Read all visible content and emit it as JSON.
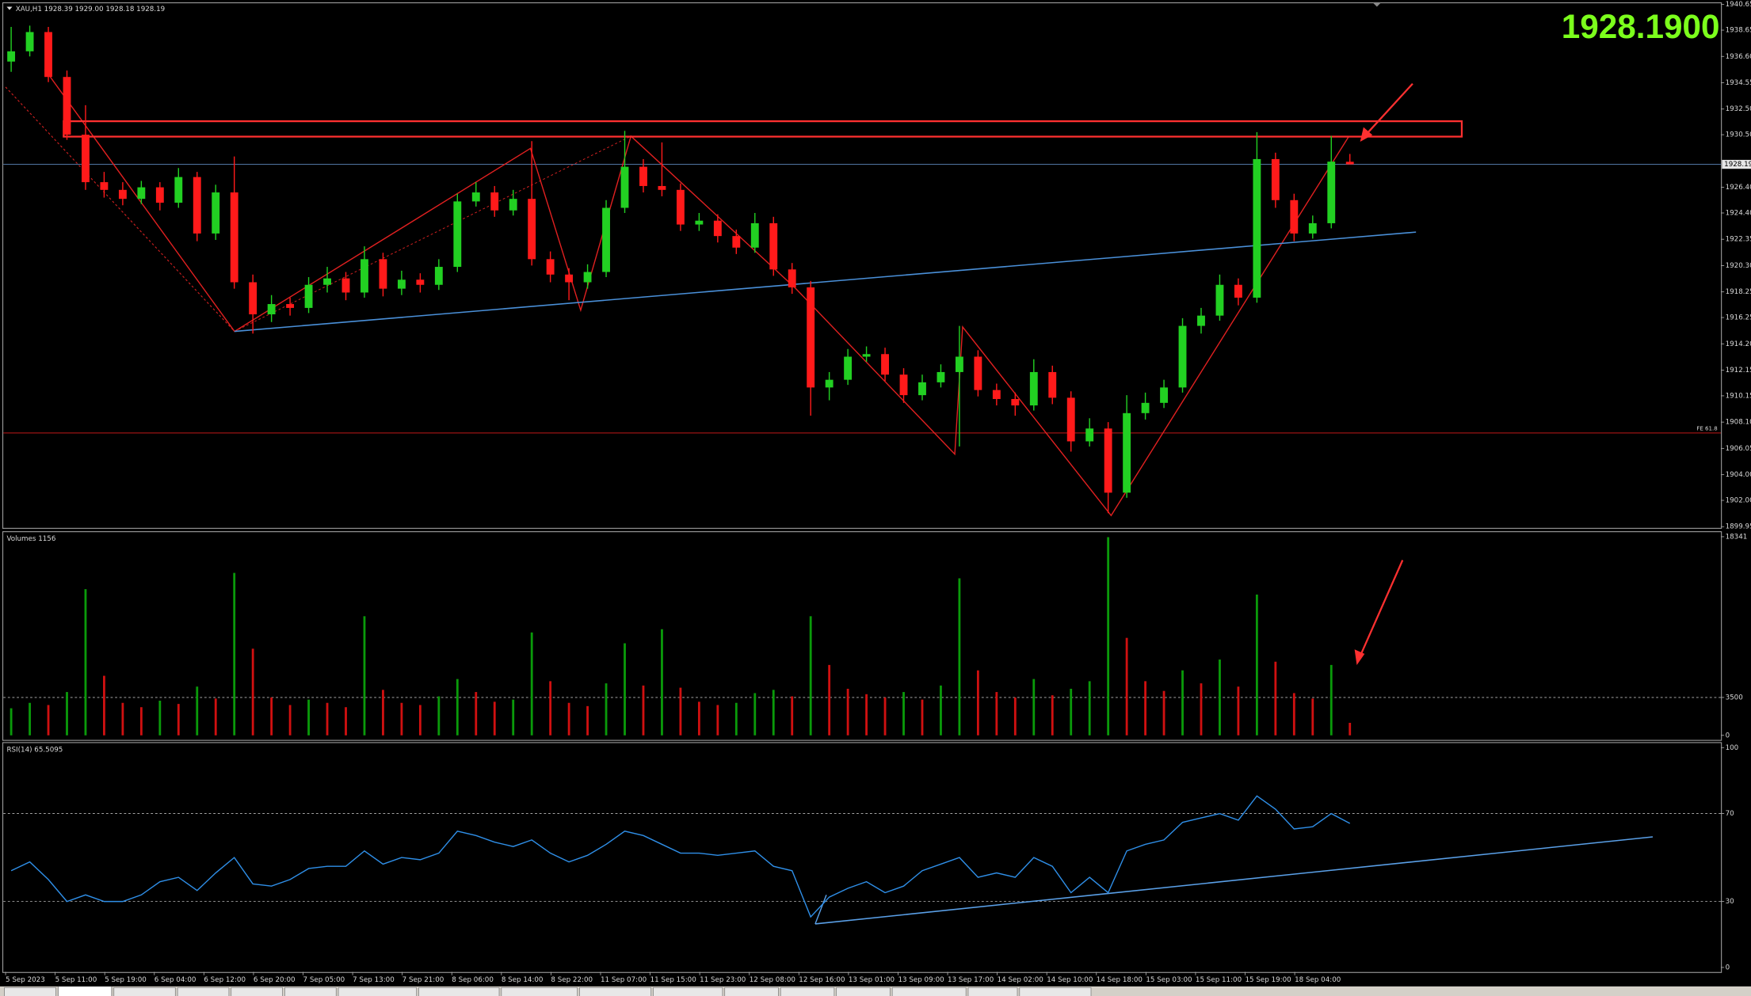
{
  "header": {
    "info": "XAU,H1  1928.39 1929.00 1928.18 1928.19",
    "price_display": "1928.1900"
  },
  "chart_data": [
    {
      "type": "candlestick",
      "up_color": "#22d022",
      "down_color": "#ff1a1a",
      "ylim": [
        1899.95,
        1940.65
      ],
      "yticks": [
        1899.95,
        {
          "value": 1902,
          "label": "1902.00"
        },
        {
          "value": 1904,
          "label": "1904.00"
        },
        1906.05,
        {
          "value": 1908.1,
          "label": "1908.10"
        },
        1910.15,
        1912.15,
        {
          "value": 1914.2,
          "label": "1914.20"
        },
        1916.25,
        1918.25,
        {
          "value": 1920.3,
          "label": "1920.30"
        },
        1922.35,
        {
          "value": 1924.4,
          "label": "1924.40"
        },
        {
          "value": 1926.4,
          "label": "1926.40"
        },
        {
          "value": 1930.5,
          "label": "1930.50"
        },
        {
          "value": 1932.5,
          "label": "1932.50"
        },
        1934.55,
        {
          "value": 1936.6,
          "label": "1936.60"
        },
        1938.65,
        1940.65
      ],
      "zone": [
        1930.35,
        1931.55
      ],
      "fe_line": {
        "label": "FE 61.8",
        "price": 1907.25
      },
      "ohlc": [
        [
          1936.2,
          1938.9,
          1935.4,
          1937.0
        ],
        [
          1937.0,
          1939.0,
          1936.6,
          1938.5
        ],
        [
          1938.5,
          1938.9,
          1934.6,
          1935.0
        ],
        [
          1935.0,
          1935.5,
          1930.1,
          1930.5
        ],
        [
          1930.5,
          1932.8,
          1926.2,
          1926.8
        ],
        [
          1926.8,
          1927.6,
          1925.6,
          1926.2
        ],
        [
          1926.2,
          1926.8,
          1925.0,
          1925.5
        ],
        [
          1925.5,
          1926.9,
          1925.1,
          1926.4
        ],
        [
          1926.4,
          1926.8,
          1924.6,
          1925.2
        ],
        [
          1925.2,
          1927.9,
          1924.8,
          1927.2
        ],
        [
          1927.2,
          1927.6,
          1922.2,
          1922.8
        ],
        [
          1922.8,
          1926.6,
          1922.3,
          1926.0
        ],
        [
          1926.0,
          1928.8,
          1918.5,
          1919.0
        ],
        [
          1919.0,
          1919.6,
          1915.0,
          1916.5
        ],
        [
          1916.5,
          1918.0,
          1915.9,
          1917.3
        ],
        [
          1917.3,
          1917.8,
          1916.4,
          1917.0
        ],
        [
          1917.0,
          1919.4,
          1916.6,
          1918.8
        ],
        [
          1918.8,
          1920.2,
          1918.2,
          1919.3
        ],
        [
          1919.3,
          1919.8,
          1917.6,
          1918.2
        ],
        [
          1918.2,
          1921.8,
          1917.8,
          1920.8
        ],
        [
          1920.8,
          1921.3,
          1917.9,
          1918.5
        ],
        [
          1918.5,
          1919.9,
          1918.0,
          1919.2
        ],
        [
          1919.2,
          1919.7,
          1918.2,
          1918.8
        ],
        [
          1918.8,
          1920.8,
          1918.4,
          1920.2
        ],
        [
          1920.2,
          1925.9,
          1919.8,
          1925.3
        ],
        [
          1925.3,
          1926.8,
          1924.9,
          1926.0
        ],
        [
          1926.0,
          1926.5,
          1924.1,
          1924.6
        ],
        [
          1924.6,
          1926.2,
          1924.2,
          1925.5
        ],
        [
          1925.5,
          1930.0,
          1920.3,
          1920.8
        ],
        [
          1920.8,
          1921.4,
          1919.0,
          1919.6
        ],
        [
          1919.6,
          1920.1,
          1917.6,
          1919.0
        ],
        [
          1919.0,
          1920.4,
          1918.5,
          1919.8
        ],
        [
          1919.8,
          1925.4,
          1919.4,
          1924.8
        ],
        [
          1924.8,
          1930.8,
          1924.4,
          1928.0
        ],
        [
          1928.0,
          1928.6,
          1926.0,
          1926.5
        ],
        [
          1926.5,
          1929.9,
          1925.7,
          1926.2
        ],
        [
          1926.2,
          1926.7,
          1923.0,
          1923.5
        ],
        [
          1923.5,
          1924.4,
          1923.0,
          1923.8
        ],
        [
          1923.8,
          1924.3,
          1922.1,
          1922.6
        ],
        [
          1922.6,
          1923.1,
          1921.2,
          1921.7
        ],
        [
          1921.7,
          1924.4,
          1921.3,
          1923.6
        ],
        [
          1923.6,
          1924.1,
          1919.5,
          1920.0
        ],
        [
          1920.0,
          1920.5,
          1918.1,
          1918.6
        ],
        [
          1918.6,
          1919.1,
          1908.6,
          1910.8
        ],
        [
          1910.8,
          1912.0,
          1909.8,
          1911.4
        ],
        [
          1911.4,
          1913.8,
          1911.0,
          1913.2
        ],
        [
          1913.2,
          1914.0,
          1912.8,
          1913.4
        ],
        [
          1913.4,
          1913.9,
          1911.3,
          1911.8
        ],
        [
          1911.8,
          1912.3,
          1909.6,
          1910.2
        ],
        [
          1910.2,
          1911.8,
          1909.8,
          1911.2
        ],
        [
          1911.2,
          1912.6,
          1910.8,
          1912.0
        ],
        [
          1912.0,
          1915.6,
          1906.2,
          1913.2
        ],
        [
          1913.2,
          1913.7,
          1910.1,
          1910.6
        ],
        [
          1910.6,
          1911.1,
          1909.4,
          1909.9
        ],
        [
          1909.9,
          1910.4,
          1908.6,
          1909.4
        ],
        [
          1909.4,
          1913.0,
          1909.0,
          1912.0
        ],
        [
          1912.0,
          1912.5,
          1909.5,
          1910.0
        ],
        [
          1910.0,
          1910.5,
          1905.8,
          1906.6
        ],
        [
          1906.6,
          1908.4,
          1906.2,
          1907.6
        ],
        [
          1907.6,
          1908.1,
          1901.0,
          1902.6
        ],
        [
          1902.6,
          1910.2,
          1902.2,
          1908.8
        ],
        [
          1908.8,
          1910.4,
          1908.3,
          1909.6
        ],
        [
          1909.6,
          1911.4,
          1909.2,
          1910.8
        ],
        [
          1910.8,
          1916.2,
          1910.4,
          1915.6
        ],
        [
          1915.6,
          1917.0,
          1915.0,
          1916.4
        ],
        [
          1916.4,
          1919.6,
          1916.0,
          1918.8
        ],
        [
          1918.8,
          1919.3,
          1917.2,
          1917.8
        ],
        [
          1917.8,
          1930.7,
          1917.4,
          1928.6
        ],
        [
          1928.6,
          1929.1,
          1924.8,
          1925.4
        ],
        [
          1925.4,
          1925.9,
          1922.2,
          1922.8
        ],
        [
          1922.8,
          1924.2,
          1922.4,
          1923.6
        ],
        [
          1923.6,
          1930.4,
          1923.2,
          1928.4
        ],
        [
          1928.39,
          1929.0,
          1928.18,
          1928.19
        ]
      ]
    },
    {
      "type": "bar",
      "title": "Volumes 1156",
      "up_color": "#0a9a0a",
      "down_color": "#d01010",
      "ylim": [
        0,
        18341
      ],
      "yticks": [
        0,
        3500,
        18341
      ],
      "values": [
        2500,
        3000,
        2800,
        4000,
        13500,
        5500,
        3000,
        2600,
        3200,
        2900,
        4500,
        3400,
        15000,
        8000,
        3500,
        2800,
        3300,
        3000,
        2600,
        11000,
        4200,
        3000,
        2800,
        3600,
        5200,
        4000,
        3100,
        3300,
        9500,
        5000,
        3000,
        2700,
        4800,
        8500,
        4600,
        9800,
        4400,
        3100,
        2800,
        3000,
        3900,
        4200,
        3600,
        11000,
        6500,
        4300,
        3800,
        3500,
        4000,
        3300,
        4600,
        14500,
        6000,
        4000,
        3500,
        5200,
        3700,
        4300,
        5000,
        18300,
        9000,
        5000,
        4100,
        6000,
        4800,
        7000,
        4500,
        13000,
        6800,
        3900,
        3400,
        6500,
        1156
      ]
    },
    {
      "type": "line",
      "title": "RSI(14) 65.5095",
      "color": "#2f8fe8",
      "ylim": [
        0,
        100
      ],
      "yticks": [
        0,
        30,
        70,
        100
      ],
      "values": [
        44,
        48,
        40,
        30,
        33,
        30,
        30,
        33,
        39,
        41,
        35,
        43,
        50,
        38,
        37,
        40,
        45,
        46,
        46,
        53,
        47,
        50,
        49,
        52,
        62,
        60,
        57,
        55,
        58,
        52,
        48,
        51,
        56,
        62,
        60,
        56,
        52,
        52,
        51,
        52,
        53,
        46,
        44,
        23,
        32,
        36,
        39,
        34,
        37,
        44,
        47,
        50,
        41,
        43,
        41,
        50,
        46,
        34,
        41,
        34,
        53,
        56,
        58,
        66,
        68,
        70,
        67,
        78,
        72,
        63,
        64,
        70,
        65.5095
      ],
      "x_labels": [
        "5 Sep 2023",
        "5 Sep 11:00",
        "5 Sep 19:00",
        "6 Sep 04:00",
        "6 Sep 12:00",
        "6 Sep 20:00",
        "7 Sep 05:00",
        "7 Sep 13:00",
        "7 Sep 21:00",
        "8 Sep 06:00",
        "8 Sep 14:00",
        "8 Sep 22:00",
        "11 Sep 07:00",
        "11 Sep 15:00",
        "11 Sep 23:00",
        "12 Sep 08:00",
        "12 Sep 16:00",
        "13 Sep 01:00",
        "13 Sep 09:00",
        "13 Sep 17:00",
        "14 Sep 02:00",
        "14 Sep 10:00",
        "14 Sep 18:00",
        "15 Sep 03:00",
        "15 Sep 11:00",
        "15 Sep 19:00",
        "18 Sep 04:00"
      ]
    }
  ]
}
